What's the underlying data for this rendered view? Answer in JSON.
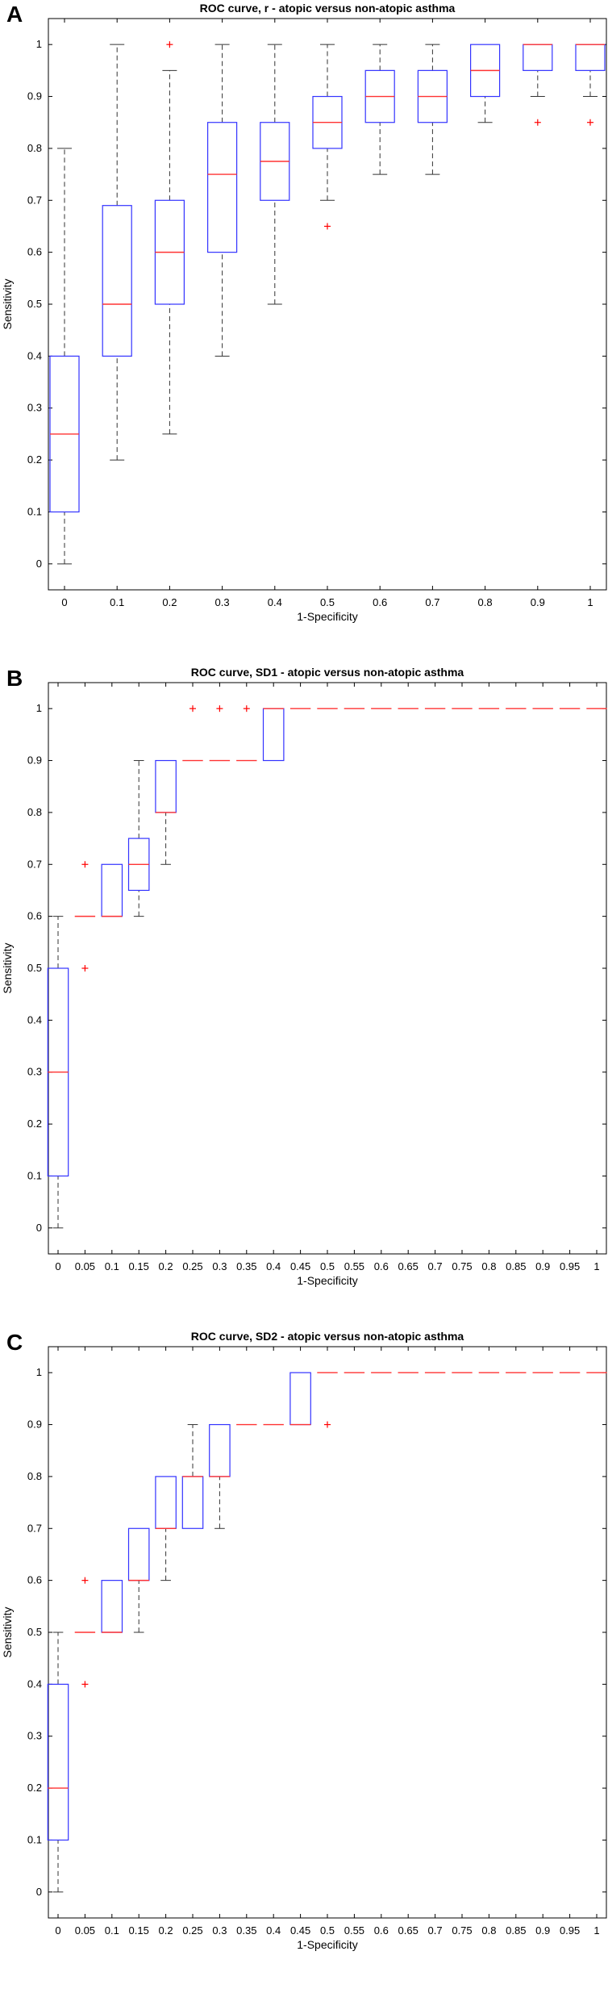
{
  "chart_data": [
    {
      "panel": "A",
      "type": "boxplot",
      "title": "ROC curve, r - atopic versus non-atopic asthma",
      "xlabel": "1-Specificity",
      "ylabel": "Sensitivity",
      "categories": [
        "0",
        "0.1",
        "0.2",
        "0.3",
        "0.4",
        "0.5",
        "0.6",
        "0.7",
        "0.8",
        "0.9",
        "1"
      ],
      "y_ticks": [
        "0",
        "0.1",
        "0.2",
        "0.3",
        "0.4",
        "0.5",
        "0.6",
        "0.7",
        "0.8",
        "0.9",
        "1"
      ],
      "ylim": [
        -0.05,
        1.05
      ],
      "grid": false,
      "boxes": [
        {
          "x": "0",
          "min": 0.0,
          "q1": 0.1,
          "median": 0.25,
          "q3": 0.4,
          "max": 0.8,
          "outliers": []
        },
        {
          "x": "0.1",
          "min": 0.2,
          "q1": 0.4,
          "median": 0.5,
          "q3": 0.69,
          "max": 1.0,
          "outliers": []
        },
        {
          "x": "0.2",
          "min": 0.25,
          "q1": 0.5,
          "median": 0.6,
          "q3": 0.7,
          "max": 0.95,
          "outliers": [
            1.0
          ]
        },
        {
          "x": "0.3",
          "min": 0.4,
          "q1": 0.6,
          "median": 0.75,
          "q3": 0.85,
          "max": 1.0,
          "outliers": []
        },
        {
          "x": "0.4",
          "min": 0.5,
          "q1": 0.7,
          "median": 0.775,
          "q3": 0.85,
          "max": 1.0,
          "outliers": []
        },
        {
          "x": "0.5",
          "min": 0.7,
          "q1": 0.8,
          "median": 0.85,
          "q3": 0.9,
          "max": 1.0,
          "outliers": [
            0.65
          ]
        },
        {
          "x": "0.6",
          "min": 0.75,
          "q1": 0.85,
          "median": 0.9,
          "q3": 0.95,
          "max": 1.0,
          "outliers": []
        },
        {
          "x": "0.7",
          "min": 0.75,
          "q1": 0.85,
          "median": 0.9,
          "q3": 0.95,
          "max": 1.0,
          "outliers": []
        },
        {
          "x": "0.8",
          "min": 0.85,
          "q1": 0.9,
          "median": 0.95,
          "q3": 1.0,
          "max": 1.0,
          "outliers": []
        },
        {
          "x": "0.9",
          "min": 0.9,
          "q1": 0.95,
          "median": 1.0,
          "q3": 1.0,
          "max": 1.0,
          "outliers": [
            0.85
          ]
        },
        {
          "x": "1",
          "min": 0.9,
          "q1": 0.95,
          "median": 1.0,
          "q3": 1.0,
          "max": 1.0,
          "outliers": [
            0.85
          ]
        }
      ]
    },
    {
      "panel": "B",
      "type": "boxplot",
      "title": "ROC curve, SD1 - atopic versus non-atopic asthma",
      "xlabel": "1-Specificity",
      "ylabel": "Sensitivity",
      "categories": [
        "0",
        "0.05",
        "0.1",
        "0.15",
        "0.2",
        "0.25",
        "0.3",
        "0.35",
        "0.4",
        "0.45",
        "0.5",
        "0.55",
        "0.6",
        "0.65",
        "0.7",
        "0.75",
        "0.8",
        "0.85",
        "0.9",
        "0.95",
        "1"
      ],
      "y_ticks": [
        "0",
        "0.1",
        "0.2",
        "0.3",
        "0.4",
        "0.5",
        "0.6",
        "0.7",
        "0.8",
        "0.9",
        "1"
      ],
      "ylim": [
        -0.05,
        1.05
      ],
      "grid": false,
      "boxes": [
        {
          "x": "0",
          "min": 0.0,
          "q1": 0.1,
          "median": 0.3,
          "q3": 0.5,
          "max": 0.6,
          "outliers": []
        },
        {
          "x": "0.05",
          "min": 0.6,
          "q1": 0.6,
          "median": 0.6,
          "q3": 0.6,
          "max": 0.6,
          "outliers": [
            0.5,
            0.7
          ]
        },
        {
          "x": "0.1",
          "min": 0.6,
          "q1": 0.6,
          "median": 0.6,
          "q3": 0.7,
          "max": 0.7,
          "outliers": []
        },
        {
          "x": "0.15",
          "min": 0.6,
          "q1": 0.65,
          "median": 0.7,
          "q3": 0.75,
          "max": 0.9,
          "outliers": []
        },
        {
          "x": "0.2",
          "min": 0.7,
          "q1": 0.8,
          "median": 0.8,
          "q3": 0.9,
          "max": 0.9,
          "outliers": []
        },
        {
          "x": "0.25",
          "min": 0.9,
          "q1": 0.9,
          "median": 0.9,
          "q3": 0.9,
          "max": 0.9,
          "outliers": [
            1.0
          ]
        },
        {
          "x": "0.3",
          "min": 0.9,
          "q1": 0.9,
          "median": 0.9,
          "q3": 0.9,
          "max": 0.9,
          "outliers": [
            1.0
          ]
        },
        {
          "x": "0.35",
          "min": 0.9,
          "q1": 0.9,
          "median": 0.9,
          "q3": 0.9,
          "max": 0.9,
          "outliers": [
            1.0
          ]
        },
        {
          "x": "0.4",
          "min": 0.9,
          "q1": 0.9,
          "median": 1.0,
          "q3": 1.0,
          "max": 1.0,
          "outliers": []
        },
        {
          "x": "0.45",
          "min": 1.0,
          "q1": 1.0,
          "median": 1.0,
          "q3": 1.0,
          "max": 1.0,
          "outliers": []
        },
        {
          "x": "0.5",
          "min": 1.0,
          "q1": 1.0,
          "median": 1.0,
          "q3": 1.0,
          "max": 1.0,
          "outliers": []
        },
        {
          "x": "0.55",
          "min": 1.0,
          "q1": 1.0,
          "median": 1.0,
          "q3": 1.0,
          "max": 1.0,
          "outliers": []
        },
        {
          "x": "0.6",
          "min": 1.0,
          "q1": 1.0,
          "median": 1.0,
          "q3": 1.0,
          "max": 1.0,
          "outliers": []
        },
        {
          "x": "0.65",
          "min": 1.0,
          "q1": 1.0,
          "median": 1.0,
          "q3": 1.0,
          "max": 1.0,
          "outliers": []
        },
        {
          "x": "0.7",
          "min": 1.0,
          "q1": 1.0,
          "median": 1.0,
          "q3": 1.0,
          "max": 1.0,
          "outliers": []
        },
        {
          "x": "0.75",
          "min": 1.0,
          "q1": 1.0,
          "median": 1.0,
          "q3": 1.0,
          "max": 1.0,
          "outliers": []
        },
        {
          "x": "0.8",
          "min": 1.0,
          "q1": 1.0,
          "median": 1.0,
          "q3": 1.0,
          "max": 1.0,
          "outliers": []
        },
        {
          "x": "0.85",
          "min": 1.0,
          "q1": 1.0,
          "median": 1.0,
          "q3": 1.0,
          "max": 1.0,
          "outliers": []
        },
        {
          "x": "0.9",
          "min": 1.0,
          "q1": 1.0,
          "median": 1.0,
          "q3": 1.0,
          "max": 1.0,
          "outliers": []
        },
        {
          "x": "0.95",
          "min": 1.0,
          "q1": 1.0,
          "median": 1.0,
          "q3": 1.0,
          "max": 1.0,
          "outliers": []
        },
        {
          "x": "1",
          "min": 1.0,
          "q1": 1.0,
          "median": 1.0,
          "q3": 1.0,
          "max": 1.0,
          "outliers": []
        }
      ]
    },
    {
      "panel": "C",
      "type": "boxplot",
      "title": "ROC curve, SD2 - atopic versus non-atopic asthma",
      "xlabel": "1-Specificity",
      "ylabel": "Sensitivity",
      "categories": [
        "0",
        "0.05",
        "0.1",
        "0.15",
        "0.2",
        "0.25",
        "0.3",
        "0.35",
        "0.4",
        "0.45",
        "0.5",
        "0.55",
        "0.6",
        "0.65",
        "0.7",
        "0.75",
        "0.8",
        "0.85",
        "0.9",
        "0.95",
        "1"
      ],
      "y_ticks": [
        "0",
        "0.1",
        "0.2",
        "0.3",
        "0.4",
        "0.5",
        "0.6",
        "0.7",
        "0.8",
        "0.9",
        "1"
      ],
      "ylim": [
        -0.05,
        1.05
      ],
      "grid": false,
      "boxes": [
        {
          "x": "0",
          "min": 0.0,
          "q1": 0.1,
          "median": 0.2,
          "q3": 0.4,
          "max": 0.5,
          "outliers": []
        },
        {
          "x": "0.05",
          "min": 0.5,
          "q1": 0.5,
          "median": 0.5,
          "q3": 0.5,
          "max": 0.5,
          "outliers": [
            0.4,
            0.6
          ]
        },
        {
          "x": "0.1",
          "min": 0.5,
          "q1": 0.5,
          "median": 0.5,
          "q3": 0.6,
          "max": 0.6,
          "outliers": []
        },
        {
          "x": "0.15",
          "min": 0.5,
          "q1": 0.6,
          "median": 0.6,
          "q3": 0.7,
          "max": 0.7,
          "outliers": []
        },
        {
          "x": "0.2",
          "min": 0.6,
          "q1": 0.7,
          "median": 0.7,
          "q3": 0.8,
          "max": 0.8,
          "outliers": []
        },
        {
          "x": "0.25",
          "min": 0.7,
          "q1": 0.7,
          "median": 0.8,
          "q3": 0.8,
          "max": 0.9,
          "outliers": []
        },
        {
          "x": "0.3",
          "min": 0.7,
          "q1": 0.8,
          "median": 0.8,
          "q3": 0.9,
          "max": 0.9,
          "outliers": []
        },
        {
          "x": "0.35",
          "min": 0.9,
          "q1": 0.9,
          "median": 0.9,
          "q3": 0.9,
          "max": 0.9,
          "outliers": []
        },
        {
          "x": "0.4",
          "min": 0.9,
          "q1": 0.9,
          "median": 0.9,
          "q3": 0.9,
          "max": 0.9,
          "outliers": []
        },
        {
          "x": "0.45",
          "min": 0.9,
          "q1": 0.9,
          "median": 0.9,
          "q3": 1.0,
          "max": 1.0,
          "outliers": []
        },
        {
          "x": "0.5",
          "min": 1.0,
          "q1": 1.0,
          "median": 1.0,
          "q3": 1.0,
          "max": 1.0,
          "outliers": [
            0.9
          ]
        },
        {
          "x": "0.55",
          "min": 1.0,
          "q1": 1.0,
          "median": 1.0,
          "q3": 1.0,
          "max": 1.0,
          "outliers": []
        },
        {
          "x": "0.6",
          "min": 1.0,
          "q1": 1.0,
          "median": 1.0,
          "q3": 1.0,
          "max": 1.0,
          "outliers": []
        },
        {
          "x": "0.65",
          "min": 1.0,
          "q1": 1.0,
          "median": 1.0,
          "q3": 1.0,
          "max": 1.0,
          "outliers": []
        },
        {
          "x": "0.7",
          "min": 1.0,
          "q1": 1.0,
          "median": 1.0,
          "q3": 1.0,
          "max": 1.0,
          "outliers": []
        },
        {
          "x": "0.75",
          "min": 1.0,
          "q1": 1.0,
          "median": 1.0,
          "q3": 1.0,
          "max": 1.0,
          "outliers": []
        },
        {
          "x": "0.8",
          "min": 1.0,
          "q1": 1.0,
          "median": 1.0,
          "q3": 1.0,
          "max": 1.0,
          "outliers": []
        },
        {
          "x": "0.85",
          "min": 1.0,
          "q1": 1.0,
          "median": 1.0,
          "q3": 1.0,
          "max": 1.0,
          "outliers": []
        },
        {
          "x": "0.9",
          "min": 1.0,
          "q1": 1.0,
          "median": 1.0,
          "q3": 1.0,
          "max": 1.0,
          "outliers": []
        },
        {
          "x": "0.95",
          "min": 1.0,
          "q1": 1.0,
          "median": 1.0,
          "q3": 1.0,
          "max": 1.0,
          "outliers": []
        },
        {
          "x": "1",
          "min": 1.0,
          "q1": 1.0,
          "median": 1.0,
          "q3": 1.0,
          "max": 1.0,
          "outliers": []
        }
      ]
    }
  ],
  "colors": {
    "box": "#3333ff",
    "median": "#ff3333",
    "whisker": "#333333",
    "outlier": "#ff0000",
    "axis": "#000000"
  }
}
